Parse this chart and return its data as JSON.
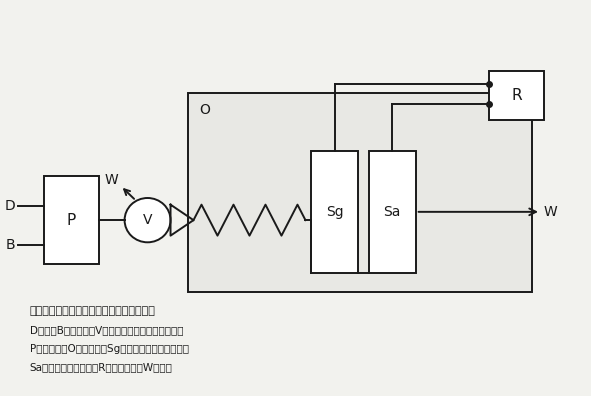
{
  "bg_color": "#f2f2ee",
  "line_color": "#1a1a1a",
  "box_color": "#ffffff",
  "title_text": "図２　バイオセンサを用いた計測システム",
  "caption_lines": [
    "D：水、B：緩衝液、V：インジェクションバルブ、",
    "P：ポンプ、O：恒温槽、Sg：グルタミン酸センサ、",
    "Sa：アミノ酸センサ、R：パソコン、W：廃液"
  ],
  "figsize": [
    5.91,
    3.96
  ],
  "dpi": 100
}
